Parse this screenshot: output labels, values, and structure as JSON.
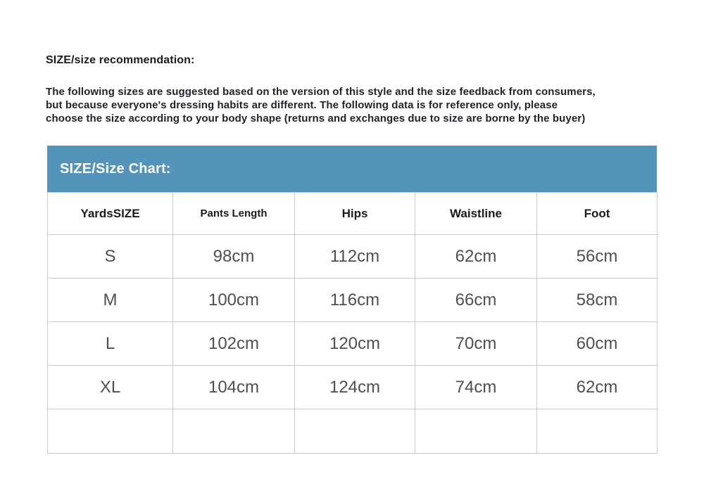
{
  "page": {
    "title": "SIZE/size recommendation:",
    "disclaimer_lines": [
      "The following sizes are suggested based on the version of this style and the size feedback from consumers,",
      "but because everyone's dressing habits are different. The following data is for reference only, please",
      "choose the size according to your body shape (returns and exchanges due to size are borne by the buyer)"
    ]
  },
  "size_chart": {
    "banner_title": "SIZE/Size Chart:",
    "banner_color": "#5493ba",
    "columns": [
      "YardsSIZE",
      "Pants Length",
      "Hips",
      "Waistline",
      "Foot"
    ],
    "rows": [
      {
        "size": "S",
        "pants_length": "98cm",
        "hips": "112cm",
        "waistline": "62cm",
        "foot": "56cm"
      },
      {
        "size": "M",
        "pants_length": "100cm",
        "hips": "116cm",
        "waistline": "66cm",
        "foot": "58cm"
      },
      {
        "size": "L",
        "pants_length": "102cm",
        "hips": "120cm",
        "waistline": "70cm",
        "foot": "60cm"
      },
      {
        "size": "XL",
        "pants_length": "104cm",
        "hips": "124cm",
        "waistline": "74cm",
        "foot": "62cm"
      }
    ],
    "empty_row": {
      "size": "",
      "pants_length": "",
      "hips": "",
      "waistline": "",
      "foot": ""
    }
  }
}
